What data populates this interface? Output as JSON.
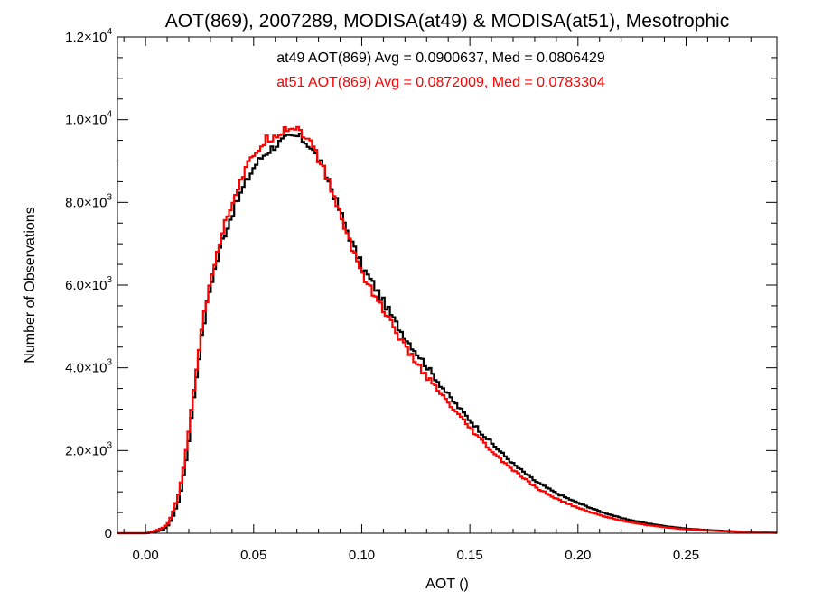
{
  "chart_data": {
    "type": "line",
    "title": "AOT(869), 2007289, MODISA(at49) & MODISA(at51), Mesotrophic",
    "xlabel": "AOT ()",
    "ylabel": "Number of Observations",
    "xlim": [
      -0.013,
      0.292
    ],
    "ylim": [
      0,
      12000
    ],
    "x_ticks": [
      "0.00",
      "0.05",
      "0.10",
      "0.15",
      "0.20",
      "0.25"
    ],
    "x_tick_values": [
      0.0,
      0.05,
      0.1,
      0.15,
      0.2,
      0.25
    ],
    "y_ticks": [
      {
        "value": 0,
        "mantissa": "0",
        "exponent": ""
      },
      {
        "value": 2000,
        "mantissa": "2.0×10",
        "exponent": "3"
      },
      {
        "value": 4000,
        "mantissa": "4.0×10",
        "exponent": "3"
      },
      {
        "value": 6000,
        "mantissa": "6.0×10",
        "exponent": "3"
      },
      {
        "value": 8000,
        "mantissa": "8.0×10",
        "exponent": "3"
      },
      {
        "value": 10000,
        "mantissa": "1.0×10",
        "exponent": "4"
      },
      {
        "value": 12000,
        "mantissa": "1.2×10",
        "exponent": "4"
      }
    ],
    "annotations": [
      {
        "text": "at49 AOT(869) Avg = 0.0900637, Med = 0.0806429",
        "color": "#000000"
      },
      {
        "text": "at51 AOT(869) Avg = 0.0872009, Med = 0.0783304",
        "color": "#ff0000"
      }
    ],
    "grid": false,
    "series": [
      {
        "name": "at49",
        "color": "#000000",
        "x": [
          -0.013,
          0.0,
          0.005,
          0.008,
          0.01,
          0.012,
          0.015,
          0.018,
          0.02,
          0.022,
          0.025,
          0.028,
          0.03,
          0.035,
          0.04,
          0.045,
          0.05,
          0.055,
          0.06,
          0.065,
          0.07,
          0.075,
          0.08,
          0.085,
          0.09,
          0.095,
          0.1,
          0.105,
          0.11,
          0.115,
          0.12,
          0.13,
          0.14,
          0.15,
          0.16,
          0.17,
          0.18,
          0.19,
          0.2,
          0.21,
          0.22,
          0.23,
          0.24,
          0.25,
          0.26,
          0.27,
          0.28,
          0.292
        ],
        "y": [
          0,
          0,
          50,
          100,
          200,
          400,
          800,
          1700,
          2500,
          3400,
          4600,
          5600,
          6100,
          7100,
          7800,
          8400,
          8900,
          9200,
          9400,
          9550,
          9600,
          9400,
          9000,
          8400,
          7700,
          7000,
          6400,
          6000,
          5550,
          5100,
          4700,
          4000,
          3300,
          2700,
          2150,
          1650,
          1250,
          950,
          720,
          520,
          360,
          250,
          170,
          110,
          75,
          50,
          30,
          10
        ]
      },
      {
        "name": "at51",
        "color": "#ff0000",
        "x": [
          -0.013,
          0.0,
          0.005,
          0.008,
          0.01,
          0.012,
          0.015,
          0.018,
          0.02,
          0.022,
          0.025,
          0.028,
          0.03,
          0.035,
          0.04,
          0.045,
          0.05,
          0.055,
          0.06,
          0.065,
          0.07,
          0.075,
          0.08,
          0.085,
          0.09,
          0.095,
          0.1,
          0.105,
          0.11,
          0.115,
          0.12,
          0.13,
          0.14,
          0.15,
          0.16,
          0.17,
          0.18,
          0.19,
          0.2,
          0.21,
          0.22,
          0.23,
          0.24,
          0.25,
          0.26,
          0.27,
          0.28,
          0.292
        ],
        "y": [
          0,
          0,
          80,
          150,
          250,
          500,
          1000,
          1900,
          2700,
          3600,
          4800,
          5700,
          6300,
          7300,
          8100,
          8700,
          9200,
          9500,
          9650,
          9800,
          9800,
          9500,
          9000,
          8400,
          7600,
          6900,
          6250,
          5800,
          5350,
          4900,
          4450,
          3750,
          3100,
          2500,
          1950,
          1500,
          1100,
          820,
          600,
          430,
          300,
          210,
          140,
          95,
          65,
          40,
          25,
          10
        ]
      }
    ]
  }
}
